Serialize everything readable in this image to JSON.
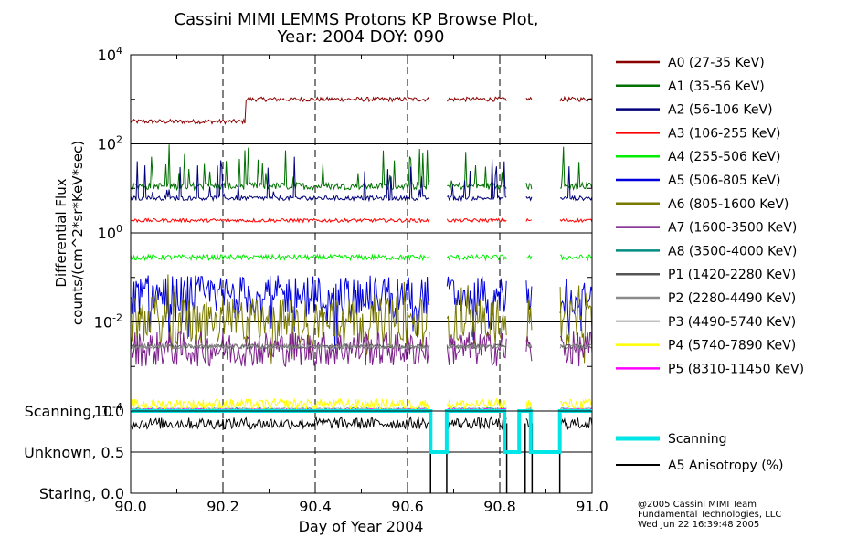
{
  "chart_data": {
    "type": "line",
    "title_line1": "Cassini MIMI LEMMS Protons KP Browse Plot,",
    "title_line2": "Year: 2004 DOY: 090",
    "xlabel": "Day of Year 2004",
    "ylabel_line1": "Differential Flux",
    "ylabel_line2": "counts/(cm^2*sr*KeV*sec)",
    "xlim": [
      90.0,
      91.0
    ],
    "x_ticks": [
      "90.0",
      "90.2",
      "90.4",
      "90.6",
      "90.8",
      "91.0"
    ],
    "x_tick_values": [
      90.0,
      90.2,
      90.4,
      90.6,
      90.8,
      91.0
    ],
    "y_scale": "log",
    "ylim_log10": [
      -4,
      4
    ],
    "y_ticks": [
      {
        "base": "10",
        "exp": "4",
        "value": 10000
      },
      {
        "base": "10",
        "exp": "2",
        "value": 100
      },
      {
        "base": "10",
        "exp": "0",
        "value": 1
      },
      {
        "base": "10",
        "exp": "-2",
        "value": 0.01
      },
      {
        "base": "10",
        "exp": "-4",
        "value": 0.0001
      }
    ],
    "data_gaps": [
      [
        90.65,
        90.685
      ],
      [
        90.815,
        90.855
      ],
      [
        90.87,
        90.93
      ]
    ],
    "series": [
      {
        "name": "A0 (27-35 KeV)",
        "color": "#8b0000",
        "log10_level": 3.0,
        "log10_level_start": 2.5,
        "step_at": 90.25,
        "noise": 0.05
      },
      {
        "name": "A1 (35-56 KeV)",
        "color": "#007000",
        "log10_level": 1.05,
        "noise": 0.08
      },
      {
        "name": "A2 (56-106 KeV)",
        "color": "#00007a",
        "log10_level": 0.78,
        "noise": 0.05
      },
      {
        "name": "A3 (106-255 KeV)",
        "color": "#ff0000",
        "log10_level": 0.28,
        "noise": 0.04
      },
      {
        "name": "A4 (255-506 KeV)",
        "color": "#00ee00",
        "log10_level": -0.55,
        "noise": 0.06
      },
      {
        "name": "A5 (506-805 KeV)",
        "color": "#0000dd",
        "log10_level": -1.4,
        "noise": 0.45
      },
      {
        "name": "A6 (805-1600 KeV)",
        "color": "#7a7a00",
        "log10_level": -2.0,
        "noise": 0.55
      },
      {
        "name": "A7 (1600-3500 KeV)",
        "color": "#7b1f8a",
        "log10_level": -2.6,
        "noise": 0.4
      },
      {
        "name": "A8 (3500-4000 KeV)",
        "color": "#008b80",
        "log10_level": -3.95,
        "noise": 0.02
      },
      {
        "name": "P1 (1420-2280 KeV)",
        "color": "#555555",
        "log10_level": -2.55,
        "noise": 0.05
      },
      {
        "name": "P2 (2280-4490 KeV)",
        "color": "#8a8a8a",
        "log10_level": -2.55,
        "noise": 0.05
      },
      {
        "name": "P3 (4490-5740 KeV)",
        "color": "#c0c0c0",
        "log10_level": -3.95,
        "noise": 0.02
      },
      {
        "name": "P4 (5740-7890 KeV)",
        "color": "#ffff00",
        "log10_level": -3.85,
        "noise": 0.12
      },
      {
        "name": "P5 (8310-11450 KeV)",
        "color": "#ff00ff",
        "log10_level": -3.97,
        "noise": 0.02
      }
    ],
    "lower_panel": {
      "y_labels": [
        "Scanning, 1.0",
        "Unknown, 0.5",
        "Staring, 0.0"
      ],
      "y_values": [
        1.0,
        0.5,
        0.0
      ],
      "ylim": [
        0.0,
        1.0
      ],
      "scanning_steps": [
        [
          90.0,
          1.0
        ],
        [
          90.65,
          0.5
        ],
        [
          90.685,
          1.0
        ],
        [
          90.81,
          0.5
        ],
        [
          90.842,
          1.0
        ],
        [
          90.867,
          0.5
        ],
        [
          90.93,
          1.0
        ],
        [
          91.0,
          1.0
        ]
      ],
      "anisotropy_level": 0.85,
      "series": [
        {
          "name": "Scanning",
          "color": "#00e5e5"
        },
        {
          "name": "A5 Anisotropy (%)",
          "color": "#000000"
        }
      ]
    }
  },
  "footer": {
    "line1": "@2005 Cassini MIMI Team",
    "line2": "Fundamental Technologies, LLC",
    "line3": "Wed Jun 22 16:39:48 2005"
  }
}
